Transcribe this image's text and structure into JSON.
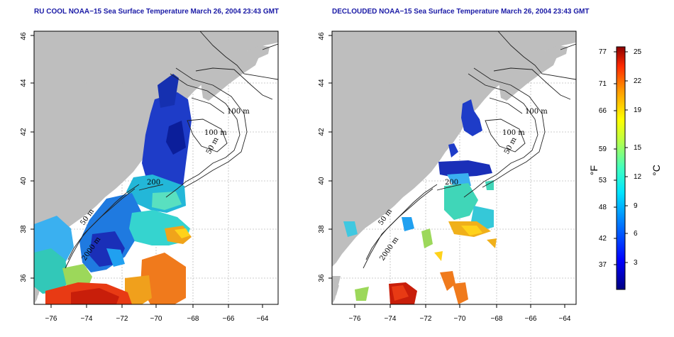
{
  "titles": {
    "left": "RU COOL NOAA−15 Sea Surface Temperature March 26, 2004 23:43 GMT",
    "right": "DECLOUDED NOAA−15 Sea Surface Temperature March 26, 2004 23:43 GMT"
  },
  "axes": {
    "x_ticks": [
      "−76",
      "−74",
      "−72",
      "−70",
      "−68",
      "−66",
      "−64"
    ],
    "y_ticks": [
      "36",
      "38",
      "40",
      "42",
      "44",
      "46"
    ]
  },
  "contour_labels": {
    "left": [
      "100 m",
      "100 m",
      "50 m",
      "200",
      "50 m",
      "2000 m"
    ],
    "right": [
      "100 m",
      "100 m",
      "50 m",
      "200",
      "50 m",
      "2000 m"
    ]
  },
  "colorbar": {
    "fahrenheit_ticks": [
      "77",
      "71",
      "66",
      "59",
      "53",
      "48",
      "42",
      "37"
    ],
    "celsius_ticks": [
      "25",
      "22",
      "19",
      "15",
      "12",
      "9",
      "6",
      "3"
    ],
    "fahrenheit_unit": "°F",
    "celsius_unit": "°C"
  },
  "colors": {
    "land": "#bebebe",
    "title": "#1a1aa6",
    "grid": "#bdbdbd",
    "contour": "#222222"
  }
}
